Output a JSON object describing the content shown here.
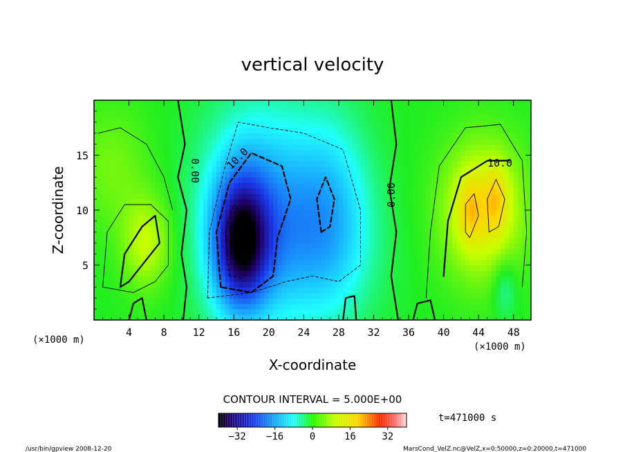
{
  "chart_data": {
    "type": "heatmap",
    "title": "vertical velocity",
    "xlabel": "X-coordinate",
    "ylabel": "Z-coordinate",
    "x_unit": "(×1000 m)",
    "y_unit": "(×1000 m)",
    "xlim": [
      0,
      50
    ],
    "ylim": [
      0,
      20
    ],
    "x_ticks": [
      4,
      8,
      12,
      16,
      20,
      24,
      28,
      32,
      36,
      40,
      44,
      48
    ],
    "y_ticks": [
      5,
      10,
      15
    ],
    "contour_interval_text": "CONTOUR INTERVAL = 5.000E+00",
    "contour_labels": [
      "0.00",
      "10.0",
      "0.00",
      "10.0"
    ],
    "time_text": "t=471000 s",
    "colorbar": {
      "range": [
        -40,
        40
      ],
      "ticks": [
        -32,
        -16,
        0,
        16,
        32
      ]
    },
    "blobs": [
      {
        "cx": 16.8,
        "cy": 7.0,
        "sx": 2.2,
        "sy": 4.2,
        "amp": -30
      },
      {
        "cx": 19.0,
        "cy": 10.5,
        "sx": 4.5,
        "sy": 6.5,
        "amp": -14
      },
      {
        "cx": 27.0,
        "cy": 10.0,
        "sx": 3.2,
        "sy": 6.0,
        "amp": -11
      },
      {
        "cx": 23.0,
        "cy": 6.0,
        "sx": 6.0,
        "sy": 5.0,
        "amp": -6
      },
      {
        "cx": 44.5,
        "cy": 10.0,
        "sx": 3.4,
        "sy": 4.5,
        "amp": 14
      },
      {
        "cx": 43.0,
        "cy": 10.0,
        "sx": 1.0,
        "sy": 2.2,
        "amp": 8
      },
      {
        "cx": 46.0,
        "cy": 11.0,
        "sx": 1.0,
        "sy": 2.2,
        "amp": 8
      },
      {
        "cx": 6.0,
        "cy": 7.0,
        "sx": 2.0,
        "sy": 3.0,
        "amp": 10
      },
      {
        "cx": 2.0,
        "cy": 14.0,
        "sx": 3.0,
        "sy": 4.0,
        "amp": 5
      },
      {
        "cx": 47.0,
        "cy": 3.0,
        "sx": 1.0,
        "sy": 2.0,
        "amp": -6
      }
    ],
    "contours": [
      {
        "style": "solid-thick",
        "points": [
          [
            10.2,
            0
          ],
          [
            10.6,
            3
          ],
          [
            10.0,
            6
          ],
          [
            10.6,
            10
          ],
          [
            9.6,
            13
          ],
          [
            10.4,
            16
          ],
          [
            9.6,
            20
          ]
        ]
      },
      {
        "style": "solid-thick",
        "points": [
          [
            34.8,
            0
          ],
          [
            34.0,
            4
          ],
          [
            34.6,
            8
          ],
          [
            33.8,
            12
          ],
          [
            34.6,
            16
          ],
          [
            34.0,
            20
          ]
        ]
      },
      {
        "style": "dashed-thin",
        "points": [
          [
            13.0,
            2
          ],
          [
            13.2,
            8
          ],
          [
            15.0,
            14
          ],
          [
            16.5,
            18
          ],
          [
            20.0,
            17.5
          ],
          [
            24.0,
            17.0
          ],
          [
            28.5,
            15.5
          ],
          [
            30.5,
            10
          ],
          [
            30.5,
            5
          ],
          [
            28.0,
            3.5
          ],
          [
            25.0,
            4
          ],
          [
            22.0,
            3.5
          ],
          [
            18.0,
            2.5
          ],
          [
            13.0,
            2
          ]
        ]
      },
      {
        "style": "dashed-thick",
        "points": [
          [
            14.5,
            3.0
          ],
          [
            14.0,
            8.0
          ],
          [
            15.5,
            12.5
          ],
          [
            18.0,
            15.2
          ],
          [
            21.5,
            14.0
          ],
          [
            22.5,
            11.0
          ],
          [
            21.0,
            7.5
          ],
          [
            20.5,
            4.0
          ],
          [
            18.0,
            2.5
          ],
          [
            14.5,
            3.0
          ]
        ]
      },
      {
        "style": "dashed-thick",
        "points": [
          [
            26.0,
            8.0
          ],
          [
            25.5,
            11.0
          ],
          [
            26.5,
            13.0
          ],
          [
            27.5,
            11.0
          ],
          [
            27.0,
            8.5
          ],
          [
            26.0,
            8.0
          ]
        ]
      },
      {
        "style": "dashed-thin",
        "points": [
          [
            15.5,
            4.0
          ],
          [
            15.0,
            8.0
          ],
          [
            16.0,
            10.5
          ],
          [
            17.5,
            9.0
          ],
          [
            18.0,
            5.5
          ],
          [
            17.0,
            3.8
          ],
          [
            15.5,
            4.0
          ]
        ]
      },
      {
        "style": "solid-thin",
        "points": [
          [
            38.0,
            2.0
          ],
          [
            38.5,
            8.0
          ],
          [
            39.5,
            14.0
          ],
          [
            42.5,
            17.5
          ],
          [
            46.5,
            17.8
          ],
          [
            49.0,
            14.5
          ],
          [
            49.5,
            8.0
          ],
          [
            49.0,
            3.0
          ]
        ]
      },
      {
        "style": "solid-thick",
        "points": [
          [
            40.0,
            4.0
          ],
          [
            40.5,
            9.0
          ],
          [
            42.0,
            13.0
          ],
          [
            45.0,
            14.5
          ],
          [
            47.5,
            14.5
          ]
        ]
      },
      {
        "style": "solid-thin",
        "points": [
          [
            42.5,
            8.0
          ],
          [
            42.5,
            10.5
          ],
          [
            43.5,
            11.5
          ],
          [
            44.0,
            9.5
          ],
          [
            43.0,
            7.5
          ],
          [
            42.5,
            8.0
          ]
        ]
      },
      {
        "style": "solid-thin",
        "points": [
          [
            45.2,
            8.0
          ],
          [
            45.0,
            11.0
          ],
          [
            46.0,
            12.8
          ],
          [
            47.0,
            11.0
          ],
          [
            46.3,
            8.5
          ],
          [
            45.2,
            8.0
          ]
        ]
      },
      {
        "style": "solid-thick",
        "points": [
          [
            3.0,
            3.0
          ],
          [
            3.5,
            6.0
          ],
          [
            5.5,
            8.5
          ],
          [
            7.0,
            9.5
          ],
          [
            7.5,
            7.0
          ],
          [
            5.5,
            5.0
          ],
          [
            4.0,
            3.5
          ],
          [
            3.0,
            3.0
          ]
        ]
      },
      {
        "style": "solid-thin",
        "points": [
          [
            1.0,
            3.0
          ],
          [
            1.5,
            8.0
          ],
          [
            3.5,
            10.5
          ],
          [
            6.5,
            10.5
          ],
          [
            8.5,
            9.0
          ],
          [
            8.5,
            5.0
          ],
          [
            7.0,
            3.5
          ],
          [
            4.5,
            2.5
          ],
          [
            1.0,
            3.0
          ]
        ]
      },
      {
        "style": "solid-thin",
        "points": [
          [
            0.5,
            17.0
          ],
          [
            3.0,
            17.5
          ],
          [
            6.0,
            16.0
          ],
          [
            8.0,
            13.0
          ],
          [
            9.0,
            10.0
          ]
        ]
      },
      {
        "style": "solid-thick",
        "points": [
          [
            4.0,
            0
          ],
          [
            4.5,
            1.5
          ],
          [
            5.5,
            2.0
          ],
          [
            6.0,
            0
          ]
        ]
      },
      {
        "style": "solid-thick",
        "points": [
          [
            28.5,
            0
          ],
          [
            28.8,
            2.0
          ],
          [
            29.8,
            2.2
          ],
          [
            30.0,
            0
          ]
        ]
      },
      {
        "style": "solid-thick",
        "points": [
          [
            36.5,
            0
          ],
          [
            37.0,
            1.5
          ],
          [
            38.5,
            1.8
          ],
          [
            39.0,
            0
          ]
        ]
      }
    ]
  },
  "footer": {
    "left": "/usr/bin/gpview   2008-12-20",
    "right": "MarsCond_VelZ.nc@VelZ,x=0:50000,z=0:20000,t=471000"
  }
}
